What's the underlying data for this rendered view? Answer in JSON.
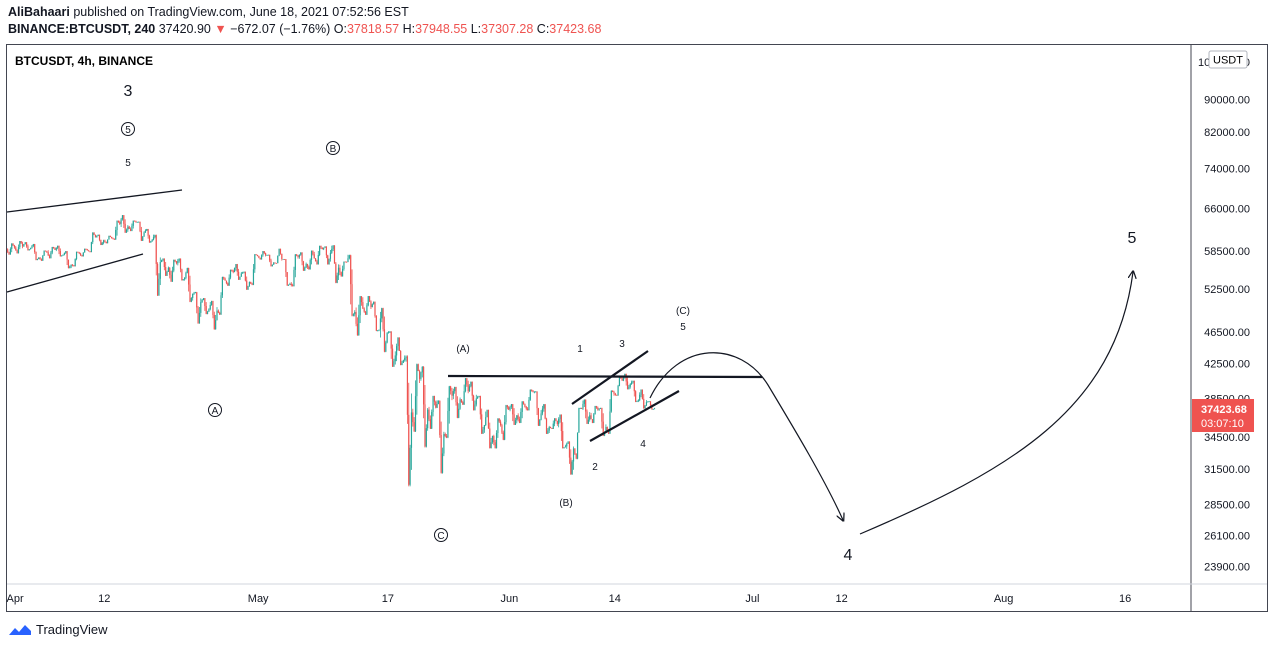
{
  "header": {
    "author": "AliBahaari",
    "published": "published on TradingView.com, June 18, 2021 07:52:56 EST",
    "symbol": "BINANCE:BTCUSDT, 240",
    "last": "37420.90",
    "change": "−672.07 (−1.76%)",
    "o_label": "O:",
    "o_val": "37818.57",
    "h_label": "H:",
    "h_val": "37948.55",
    "l_label": "L:",
    "l_val": "37307.28",
    "c_label": "C:",
    "c_val": "37423.68"
  },
  "chart_title": "BTCUSDT, 4h, BINANCE",
  "currency": "USDT",
  "price_tag": {
    "price": "37423.68",
    "countdown": "03:07:10",
    "color": "#ef5350"
  },
  "colors": {
    "up": "#26a69a",
    "down": "#ef5350",
    "text": "#131722",
    "border": "#434651",
    "brand": "#2962ff"
  },
  "footer": {
    "brand": "TradingView"
  },
  "chart_data": {
    "type": "candlestick",
    "timeframe": "4h",
    "y_scale": "log",
    "ylim": [
      22800,
      105000
    ],
    "y_ticks": [
      {
        "v": 23900,
        "t": "23900.00"
      },
      {
        "v": 26100,
        "t": "26100.00"
      },
      {
        "v": 28500,
        "t": "28500.00"
      },
      {
        "v": 31500,
        "t": "31500.00"
      },
      {
        "v": 34500,
        "t": "34500.00"
      },
      {
        "v": 38500,
        "t": "38500.00"
      },
      {
        "v": 42500,
        "t": "42500.00"
      },
      {
        "v": 46500,
        "t": "46500.00"
      },
      {
        "v": 52500,
        "t": "52500.00"
      },
      {
        "v": 58500,
        "t": "58500.00"
      },
      {
        "v": 66000,
        "t": "66000.00"
      },
      {
        "v": 74000,
        "t": "74000.00"
      },
      {
        "v": 82000,
        "t": "82000.00"
      },
      {
        "v": 90000,
        "t": "90000.00"
      },
      {
        "v": 100000,
        "t": "100000.00"
      }
    ],
    "x_range": [
      "2021-03-31",
      "2021-08-24"
    ],
    "x_ticks": [
      {
        "d": "2021-04-01",
        "t": "Apr"
      },
      {
        "d": "2021-04-12",
        "t": "12"
      },
      {
        "d": "2021-05-01",
        "t": "May"
      },
      {
        "d": "2021-05-17",
        "t": "17"
      },
      {
        "d": "2021-06-01",
        "t": "Jun"
      },
      {
        "d": "2021-06-14",
        "t": "14"
      },
      {
        "d": "2021-07-01",
        "t": "Jul"
      },
      {
        "d": "2021-07-12",
        "t": "12"
      },
      {
        "d": "2021-08-01",
        "t": "Aug"
      },
      {
        "d": "2021-08-16",
        "t": "16"
      }
    ],
    "daily_ohlc_approx": [
      [
        "2021-03-31",
        58800,
        59800,
        57900,
        59100
      ],
      [
        "2021-04-01",
        59100,
        60200,
        58100,
        59300
      ],
      [
        "2021-04-02",
        59300,
        60000,
        58600,
        59000
      ],
      [
        "2021-04-03",
        59000,
        59700,
        57000,
        57400
      ],
      [
        "2021-04-04",
        57400,
        58600,
        56900,
        58300
      ],
      [
        "2021-04-05",
        58300,
        59200,
        57300,
        58700
      ],
      [
        "2021-04-06",
        58700,
        59400,
        57600,
        57900
      ],
      [
        "2021-04-07",
        57900,
        58500,
        55700,
        56300
      ],
      [
        "2021-04-08",
        56300,
        58400,
        56000,
        58100
      ],
      [
        "2021-04-09",
        58100,
        58900,
        57600,
        58600
      ],
      [
        "2021-04-10",
        58600,
        61700,
        58300,
        60800
      ],
      [
        "2021-04-11",
        60800,
        61300,
        59500,
        60300
      ],
      [
        "2021-04-12",
        60300,
        61100,
        59800,
        60700
      ],
      [
        "2021-04-13",
        60700,
        63800,
        60400,
        63200
      ],
      [
        "2021-04-14",
        63200,
        64800,
        61600,
        62700
      ],
      [
        "2021-04-15",
        62700,
        63800,
        61900,
        63500
      ],
      [
        "2021-04-16",
        63500,
        63600,
        60200,
        61700
      ],
      [
        "2021-04-17",
        61700,
        62300,
        59900,
        60400
      ],
      [
        "2021-04-18",
        60400,
        61300,
        51500,
        56700
      ],
      [
        "2021-04-19",
        56700,
        57300,
        54500,
        55800
      ],
      [
        "2021-04-20",
        55800,
        57100,
        53600,
        56500
      ],
      [
        "2021-04-21",
        56500,
        57300,
        53800,
        54200
      ],
      [
        "2021-04-22",
        54200,
        55800,
        50600,
        51800
      ],
      [
        "2021-04-23",
        51800,
        52100,
        47600,
        50600
      ],
      [
        "2021-04-24",
        50600,
        51200,
        48900,
        49600
      ],
      [
        "2021-04-25",
        49600,
        50800,
        46800,
        49400
      ],
      [
        "2021-04-26",
        49400,
        54400,
        48800,
        53800
      ],
      [
        "2021-04-27",
        53800,
        55500,
        53000,
        55100
      ],
      [
        "2021-04-28",
        55100,
        56400,
        53900,
        54900
      ],
      [
        "2021-04-29",
        54900,
        55200,
        52400,
        53600
      ],
      [
        "2021-04-30",
        53600,
        58000,
        53100,
        57700
      ],
      [
        "2021-05-01",
        57700,
        58500,
        57100,
        57800
      ],
      [
        "2021-05-02",
        57800,
        57900,
        56000,
        56600
      ],
      [
        "2021-05-03",
        56600,
        58900,
        56500,
        57200
      ],
      [
        "2021-05-04",
        57200,
        57200,
        53000,
        53300
      ],
      [
        "2021-05-05",
        53300,
        58000,
        52900,
        57500
      ],
      [
        "2021-05-06",
        57500,
        58300,
        55300,
        56400
      ],
      [
        "2021-05-07",
        56400,
        58600,
        55500,
        57300
      ],
      [
        "2021-05-08",
        57300,
        59400,
        56300,
        58800
      ],
      [
        "2021-05-09",
        58800,
        59300,
        56300,
        58200
      ],
      [
        "2021-05-10",
        58200,
        59500,
        53400,
        55800
      ],
      [
        "2021-05-11",
        55800,
        56800,
        54400,
        56700
      ],
      [
        "2021-05-12",
        56700,
        57900,
        48600,
        49200
      ],
      [
        "2021-05-13",
        49200,
        51500,
        46000,
        49700
      ],
      [
        "2021-05-14",
        49700,
        51500,
        48800,
        49900
      ],
      [
        "2021-05-15",
        49900,
        50700,
        46600,
        46800
      ],
      [
        "2021-05-16",
        46800,
        49800,
        43900,
        46400
      ],
      [
        "2021-05-17",
        46400,
        46600,
        42100,
        43500
      ],
      [
        "2021-05-18",
        43500,
        45800,
        42300,
        42900
      ],
      [
        "2021-05-19",
        42900,
        43500,
        30000,
        37000
      ],
      [
        "2021-05-20",
        37000,
        42500,
        35000,
        40700
      ],
      [
        "2021-05-21",
        40700,
        42200,
        33500,
        37300
      ],
      [
        "2021-05-22",
        37300,
        38800,
        35300,
        37500
      ],
      [
        "2021-05-23",
        37500,
        38300,
        31100,
        34800
      ],
      [
        "2021-05-24",
        34800,
        39900,
        34400,
        38800
      ],
      [
        "2021-05-25",
        38800,
        39800,
        36400,
        38400
      ],
      [
        "2021-05-26",
        38400,
        40800,
        37800,
        39300
      ],
      [
        "2021-05-27",
        39300,
        40400,
        37200,
        38500
      ],
      [
        "2021-05-28",
        38500,
        38800,
        34800,
        35700
      ],
      [
        "2021-05-29",
        35700,
        37300,
        33400,
        34600
      ],
      [
        "2021-05-30",
        34600,
        36400,
        33400,
        35700
      ],
      [
        "2021-05-31",
        35700,
        37800,
        34200,
        37300
      ],
      [
        "2021-06-01",
        37300,
        37900,
        35700,
        36700
      ],
      [
        "2021-06-02",
        36700,
        38200,
        35900,
        37600
      ],
      [
        "2021-06-03",
        37600,
        39500,
        37200,
        39200
      ],
      [
        "2021-06-04",
        39200,
        39300,
        35600,
        36900
      ],
      [
        "2021-06-05",
        36900,
        37900,
        34800,
        35500
      ],
      [
        "2021-06-06",
        35500,
        36400,
        35300,
        35800
      ],
      [
        "2021-06-07",
        35800,
        36800,
        33400,
        33600
      ],
      [
        "2021-06-08",
        33600,
        34100,
        31000,
        33400
      ],
      [
        "2021-06-09",
        33400,
        37500,
        32400,
        37400
      ],
      [
        "2021-06-10",
        37400,
        38400,
        35800,
        36700
      ],
      [
        "2021-06-11",
        36700,
        37700,
        35900,
        37300
      ],
      [
        "2021-06-12",
        37300,
        37500,
        34600,
        35500
      ],
      [
        "2021-06-13",
        35500,
        39400,
        34800,
        39000
      ],
      [
        "2021-06-14",
        39000,
        41000,
        38800,
        40500
      ],
      [
        "2021-06-15",
        40500,
        41300,
        39500,
        40100
      ],
      [
        "2021-06-16",
        40100,
        40500,
        38100,
        38300
      ],
      [
        "2021-06-17",
        38300,
        39500,
        37400,
        38100
      ],
      [
        "2021-06-18",
        38100,
        38200,
        37300,
        37424
      ]
    ]
  },
  "annotations": {
    "wave_3_top": "3",
    "circle_5": "5",
    "five_small": "5",
    "circle_B": "B",
    "circle_A": "A",
    "circle_C": "C",
    "paren_A": "(A)",
    "paren_B": "(B)",
    "paren_C": "(C)",
    "five_under_C": "5",
    "sub_1": "1",
    "sub_2": "2",
    "sub_3": "3",
    "sub_4": "4",
    "wave_4": "4",
    "wave_5": "5"
  }
}
